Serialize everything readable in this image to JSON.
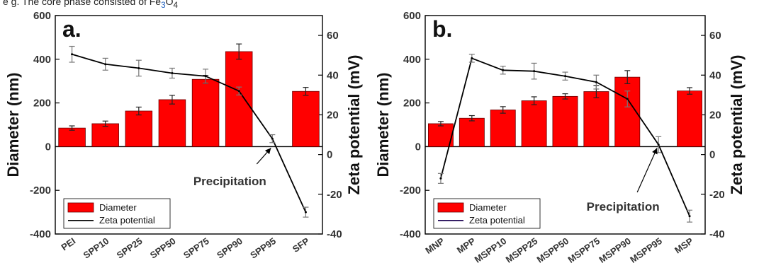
{
  "caption": {
    "prefix": "e g. The core phase consisted of Fe",
    "sub1": "3",
    "mid": "O",
    "sub2": "4"
  },
  "chart_data": [
    {
      "type": "bar",
      "panel": "a.",
      "categories": [
        "PEI",
        "SPP10",
        "SPP25",
        "SPP50",
        "SPP75",
        "SPP90",
        "SPP95",
        "SFP"
      ],
      "series": [
        {
          "name": "Diameter",
          "axis": "left",
          "kind": "bar",
          "color": "#ff0000",
          "values": [
            85,
            105,
            163,
            215,
            308,
            435,
            null,
            253
          ],
          "errors": [
            10,
            12,
            18,
            20,
            18,
            35,
            null,
            18
          ]
        },
        {
          "name": "Zeta potential",
          "axis": "right",
          "kind": "line",
          "color": "#000000",
          "values": [
            50.5,
            45.5,
            43.5,
            41,
            39.5,
            32,
            8,
            -29
          ],
          "errors": [
            4,
            3,
            4,
            2.5,
            3.5,
            2,
            2,
            2.5
          ]
        }
      ],
      "ylabel": "Diameter (nm)",
      "ylim": [
        -400,
        600
      ],
      "yticks": [
        -400,
        -200,
        0,
        200,
        400,
        600
      ],
      "y2label": "Zeta potential (mV)",
      "y2lim": [
        -40,
        70
      ],
      "y2ticks": [
        -40,
        -20,
        0,
        20,
        40,
        60
      ],
      "annotation": {
        "text": "Precipitation",
        "category": "SPP95"
      },
      "legend": {
        "placement": "bottom-left",
        "entries": [
          "Diameter",
          "Zeta potential"
        ]
      }
    },
    {
      "type": "bar",
      "panel": "b.",
      "categories": [
        "MNP",
        "MPP",
        "MSPP10",
        "MSPP25",
        "MSPP50",
        "MSPP75",
        "MSPP90",
        "MSPP95",
        "MSP"
      ],
      "series": [
        {
          "name": "Diameter",
          "axis": "left",
          "kind": "bar",
          "color": "#ff0000",
          "values": [
            105,
            130,
            168,
            210,
            230,
            252,
            318,
            null,
            255
          ],
          "errors": [
            10,
            12,
            15,
            18,
            12,
            28,
            30,
            null,
            15
          ]
        },
        {
          "name": "Zeta potential",
          "axis": "right",
          "kind": "line",
          "color": "#000000",
          "values": [
            -12,
            48.5,
            42.5,
            42,
            39.5,
            36.5,
            28,
            5,
            -31
          ],
          "errors": [
            2.5,
            2,
            2,
            4,
            2,
            3.5,
            4,
            4,
            3
          ]
        }
      ],
      "ylabel": "Diameter (nm)",
      "ylim": [
        -400,
        600
      ],
      "yticks": [
        -400,
        -200,
        0,
        200,
        400,
        600
      ],
      "y2label": "Zeta potential (mV)",
      "y2lim": [
        -40,
        70
      ],
      "y2ticks": [
        -40,
        -20,
        0,
        20,
        40,
        60
      ],
      "annotation": {
        "text": "Precipitation",
        "category": "MSPP95"
      },
      "legend": {
        "placement": "bottom-left",
        "entries": [
          "Diameter",
          "Zeta potential"
        ]
      }
    }
  ]
}
